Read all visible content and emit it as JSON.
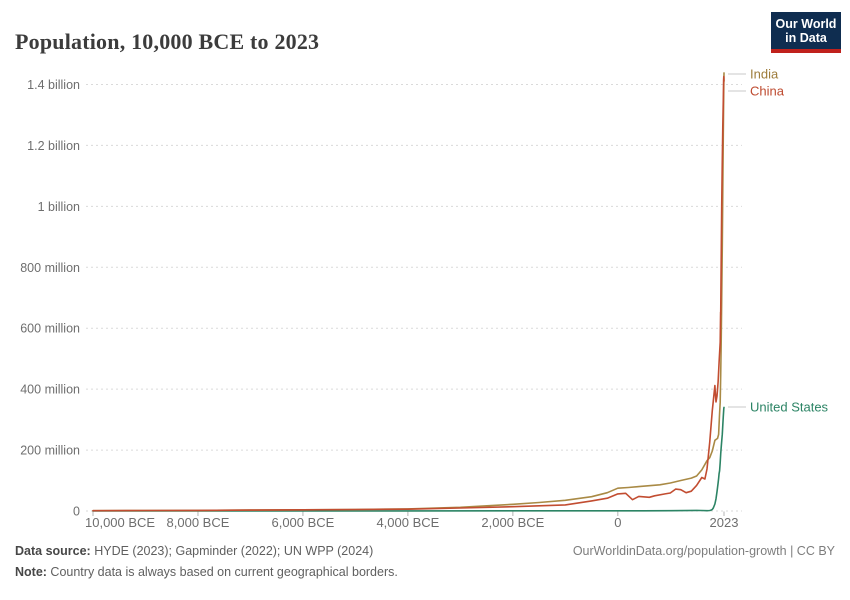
{
  "header": {
    "title": "Population, 10,000 BCE to 2023",
    "logo": {
      "line1": "Our World",
      "line2": "in Data",
      "bg_color": "#0f2d50",
      "stripe_color": "#c0211c"
    }
  },
  "chart_data": {
    "type": "line",
    "title": "Population, 10,000 BCE to 2023",
    "grid": true,
    "legend_position": "end-of-line-labels-right",
    "x_axis": {
      "range_years": [
        -10000,
        2023
      ],
      "ticks": [
        {
          "year": -10000,
          "label": "10,000 BCE"
        },
        {
          "year": -8000,
          "label": "8,000 BCE"
        },
        {
          "year": -6000,
          "label": "6,000 BCE"
        },
        {
          "year": -4000,
          "label": "4,000 BCE"
        },
        {
          "year": -2000,
          "label": "2,000 BCE"
        },
        {
          "year": 0,
          "label": "0"
        },
        {
          "year": 2023,
          "label": "2023"
        }
      ]
    },
    "y_axis": {
      "unit": "people",
      "range_millions": [
        0,
        1450
      ],
      "ticks": [
        {
          "value": 0,
          "label": "0"
        },
        {
          "value": 200,
          "label": "200 million"
        },
        {
          "value": 400,
          "label": "400 million"
        },
        {
          "value": 600,
          "label": "600 million"
        },
        {
          "value": 800,
          "label": "800 million"
        },
        {
          "value": 1000,
          "label": "1 billion"
        },
        {
          "value": 1200,
          "label": "1.2 billion"
        },
        {
          "value": 1400,
          "label": "1.4 billion"
        }
      ]
    },
    "series": [
      {
        "name": "United States",
        "color": "#2C8465",
        "label_color": "#2C8465",
        "points": [
          [
            -10000,
            0.05
          ],
          [
            -8000,
            0.1
          ],
          [
            -6000,
            0.15
          ],
          [
            -4000,
            0.3
          ],
          [
            -2000,
            0.5
          ],
          [
            0,
            0.6
          ],
          [
            500,
            0.8
          ],
          [
            1000,
            1.1
          ],
          [
            1500,
            2
          ],
          [
            1600,
            1.8
          ],
          [
            1700,
            1
          ],
          [
            1750,
            1.5
          ],
          [
            1776,
            2.5
          ],
          [
            1800,
            5.3
          ],
          [
            1820,
            10
          ],
          [
            1850,
            23
          ],
          [
            1870,
            40
          ],
          [
            1890,
            63
          ],
          [
            1900,
            76
          ],
          [
            1910,
            92
          ],
          [
            1920,
            106
          ],
          [
            1930,
            123
          ],
          [
            1940,
            132
          ],
          [
            1950,
            159
          ],
          [
            1960,
            187
          ],
          [
            1970,
            209
          ],
          [
            1980,
            229
          ],
          [
            1990,
            252
          ],
          [
            2000,
            282
          ],
          [
            2010,
            311
          ],
          [
            2020,
            336
          ],
          [
            2023,
            340
          ]
        ]
      },
      {
        "name": "India",
        "color": "#A98A45",
        "label_color": "#9E7C3B",
        "points": [
          [
            -10000,
            1
          ],
          [
            -9000,
            1.5
          ],
          [
            -8000,
            2
          ],
          [
            -7000,
            3
          ],
          [
            -6000,
            4
          ],
          [
            -5000,
            5
          ],
          [
            -4000,
            7
          ],
          [
            -3000,
            12
          ],
          [
            -2000,
            22
          ],
          [
            -1500,
            28
          ],
          [
            -1000,
            35
          ],
          [
            -500,
            47
          ],
          [
            -200,
            60
          ],
          [
            0,
            75
          ],
          [
            200,
            77
          ],
          [
            400,
            80
          ],
          [
            600,
            83
          ],
          [
            800,
            86
          ],
          [
            1000,
            92
          ],
          [
            1200,
            100
          ],
          [
            1400,
            108
          ],
          [
            1500,
            115
          ],
          [
            1600,
            135
          ],
          [
            1700,
            165
          ],
          [
            1750,
            175
          ],
          [
            1800,
            197
          ],
          [
            1850,
            232
          ],
          [
            1880,
            236
          ],
          [
            1900,
            238
          ],
          [
            1920,
            251
          ],
          [
            1940,
            321
          ],
          [
            1950,
            357
          ],
          [
            1960,
            446
          ],
          [
            1970,
            555
          ],
          [
            1980,
            696
          ],
          [
            1990,
            870
          ],
          [
            2000,
            1059
          ],
          [
            2010,
            1240
          ],
          [
            2020,
            1396
          ],
          [
            2023,
            1438
          ]
        ]
      },
      {
        "name": "China",
        "color": "#C24D31",
        "label_color": "#BE4A2F",
        "points": [
          [
            -10000,
            1
          ],
          [
            -9000,
            1.5
          ],
          [
            -8000,
            2
          ],
          [
            -7000,
            3
          ],
          [
            -6000,
            4
          ],
          [
            -5000,
            5
          ],
          [
            -4000,
            6
          ],
          [
            -3000,
            10
          ],
          [
            -2000,
            14
          ],
          [
            -1500,
            17
          ],
          [
            -1000,
            20
          ],
          [
            -500,
            33
          ],
          [
            -200,
            42
          ],
          [
            0,
            56
          ],
          [
            150,
            58
          ],
          [
            280,
            37
          ],
          [
            400,
            48
          ],
          [
            600,
            45
          ],
          [
            700,
            50
          ],
          [
            900,
            56
          ],
          [
            1000,
            59
          ],
          [
            1100,
            72
          ],
          [
            1200,
            70
          ],
          [
            1300,
            60
          ],
          [
            1400,
            65
          ],
          [
            1500,
            84
          ],
          [
            1600,
            110
          ],
          [
            1660,
            105
          ],
          [
            1700,
            138
          ],
          [
            1750,
            225
          ],
          [
            1800,
            330
          ],
          [
            1850,
            412
          ],
          [
            1855,
            395
          ],
          [
            1870,
            358
          ],
          [
            1890,
            377
          ],
          [
            1910,
            423
          ],
          [
            1930,
            489
          ],
          [
            1950,
            554
          ],
          [
            1958,
            653
          ],
          [
            1961,
            644
          ],
          [
            1970,
            827
          ],
          [
            1980,
            1000
          ],
          [
            1990,
            1154
          ],
          [
            2000,
            1264
          ],
          [
            2010,
            1348
          ],
          [
            2016,
            1414
          ],
          [
            2020,
            1426
          ],
          [
            2023,
            1411
          ]
        ]
      }
    ],
    "colors": {
      "gridline": "#dadada",
      "tick_mark": "#b5b5b5",
      "axis_label": "#6e6e6e",
      "connector": "#c9c9c9"
    }
  },
  "footer": {
    "source_label": "Data source:",
    "source_text": " HYDE (2023); Gapminder (2022); UN WPP (2024)",
    "note_label": "Note:",
    "note_text": " Country data is always based on current geographical borders.",
    "link": "OurWorldinData.org/population-growth | CC BY"
  }
}
